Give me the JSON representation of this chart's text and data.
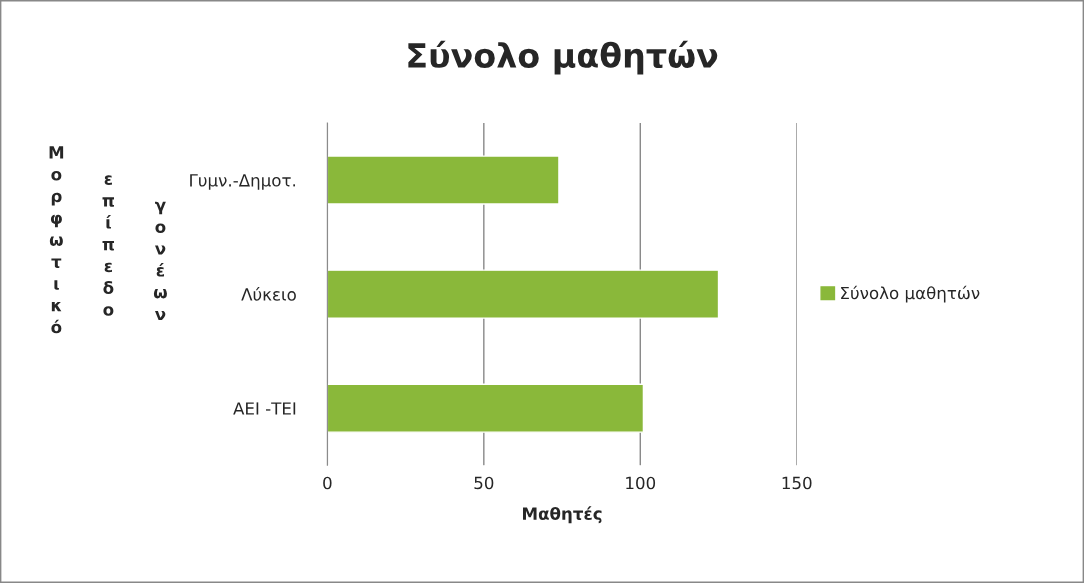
{
  "chart_data": {
    "type": "bar",
    "orientation": "horizontal",
    "title": "Σύνολο μαθητών",
    "xlabel": "Μαθητές",
    "ylabel": "Μορφωτικό επίπεδο γονέων",
    "categories": [
      "Γυμν.-Δημοτ.",
      "Λύκειο",
      "ΑΕΙ -ΤΕΙ"
    ],
    "series": [
      {
        "name": "Σύνολο μαθητών",
        "color": "#8ab83a",
        "values": [
          74,
          125,
          101
        ]
      }
    ],
    "xlim": [
      0,
      150
    ],
    "xticks": [
      0,
      50,
      100,
      150
    ],
    "grid": "x",
    "legend": "right"
  }
}
